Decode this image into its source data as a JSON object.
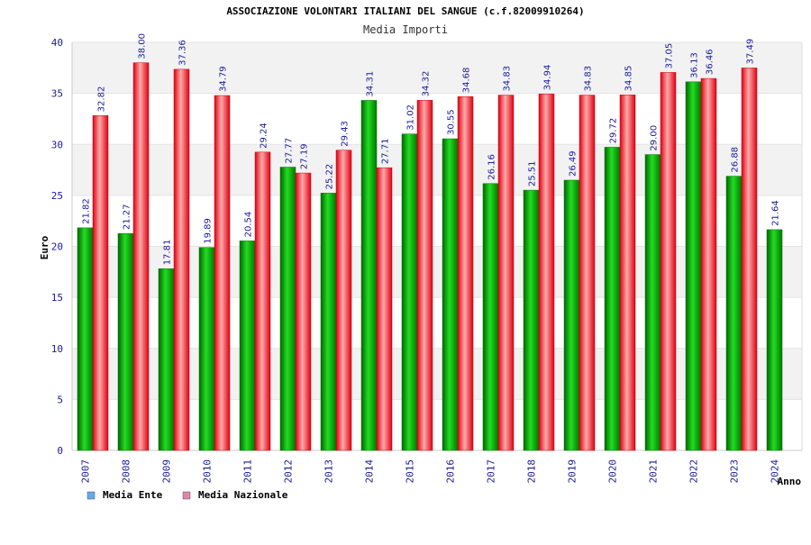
{
  "chart_data": {
    "type": "bar",
    "title": "ASSOCIAZIONE VOLONTARI ITALIANI DEL SANGUE (c.f.82009910264)",
    "subtitle": "Media Importi",
    "xlabel": "Anno",
    "ylabel": "Euro",
    "ylim": [
      0,
      40
    ],
    "yticks": [
      0,
      5,
      10,
      15,
      20,
      25,
      30,
      35,
      40
    ],
    "grid": "horizontal bands",
    "legend_position": "bottom-left",
    "categories": [
      "2007",
      "2008",
      "2009",
      "2010",
      "2011",
      "2012",
      "2013",
      "2014",
      "2015",
      "2016",
      "2017",
      "2018",
      "2019",
      "2020",
      "2021",
      "2022",
      "2023",
      "2024"
    ],
    "series": [
      {
        "name": "Media Ente",
        "color": "#00aa00",
        "legend_color": "#66aaee",
        "values": [
          21.82,
          21.27,
          17.81,
          19.89,
          20.54,
          27.77,
          25.22,
          34.31,
          31.02,
          30.55,
          26.16,
          25.51,
          26.49,
          29.72,
          29.0,
          36.13,
          26.88,
          21.64
        ],
        "labels": [
          "21.82",
          "21.27",
          "17.81",
          "19.89",
          "20.54",
          "27.77",
          "25.22",
          "34.31",
          "31.02",
          "30.55",
          "26.16",
          "25.51",
          "26.49",
          "29.72",
          "29.00",
          "36.13",
          "26.88",
          "21.64"
        ]
      },
      {
        "name": "Media Nazionale",
        "color": "#ee1122",
        "legend_color": "#dd88aa",
        "values": [
          32.82,
          38.0,
          37.36,
          34.79,
          29.24,
          27.19,
          29.43,
          27.71,
          34.32,
          34.68,
          34.83,
          34.94,
          34.83,
          34.85,
          37.05,
          36.46,
          37.49,
          null
        ],
        "labels": [
          "32.82",
          "38.00",
          "37.36",
          "34.79",
          "29.24",
          "27.19",
          "29.43",
          "27.71",
          "34.32",
          "34.68",
          "34.83",
          "34.94",
          "34.83",
          "34.85",
          "37.05",
          "36.46",
          "37.49",
          ""
        ]
      }
    ]
  }
}
